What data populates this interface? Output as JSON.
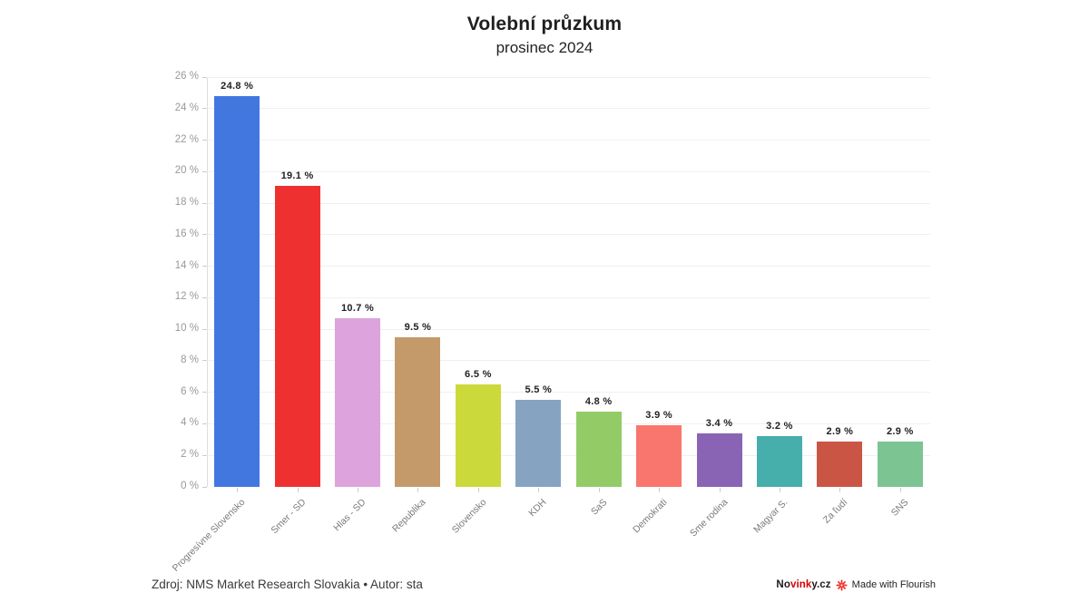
{
  "header": {
    "title": "Volební průzkum",
    "subtitle": "prosinec 2024"
  },
  "chart_data": {
    "type": "bar",
    "title": "Volební průzkum",
    "subtitle": "prosinec 2024",
    "categories": [
      "Progresívne Slovensko",
      "Smer - SD",
      "Hlas - SD",
      "Republika",
      "Slovensko",
      "KDH",
      "SaS",
      "Demokrati",
      "Sme rodina",
      "Magyar S.",
      "Za ľudí",
      "SNS"
    ],
    "values": [
      24.8,
      19.1,
      10.7,
      9.5,
      6.5,
      5.5,
      4.8,
      3.9,
      3.4,
      3.2,
      2.9,
      2.9
    ],
    "value_labels": [
      "24.8 %",
      "19.1 %",
      "10.7 %",
      "9.5 %",
      "6.5 %",
      "5.5 %",
      "4.8 %",
      "3.9 %",
      "3.4 %",
      "3.2 %",
      "2.9 %",
      "2.9 %"
    ],
    "colors": [
      "#4377e0",
      "#ee3130",
      "#dca3dd",
      "#c59a6a",
      "#ccd93a",
      "#86a3c2",
      "#93cc67",
      "#f8766d",
      "#8a64b4",
      "#46aeab",
      "#cb5544",
      "#7cc492"
    ],
    "xlabel": "",
    "ylabel": "",
    "ylim": [
      0,
      26
    ],
    "ytick_step": 2,
    "ytick_suffix": " %",
    "grid": "horizontal",
    "legend": "none"
  },
  "footer": {
    "source": "Zdroj: NMS Market Research Slovakia • Autor: sta",
    "brand": {
      "part1": "No",
      "part2": "vink",
      "part3": "y.cz"
    },
    "attribution": "Made with Flourish"
  },
  "icons": {
    "flourish": "flourish-burst-icon",
    "flourish_color": "#ed2e24"
  }
}
